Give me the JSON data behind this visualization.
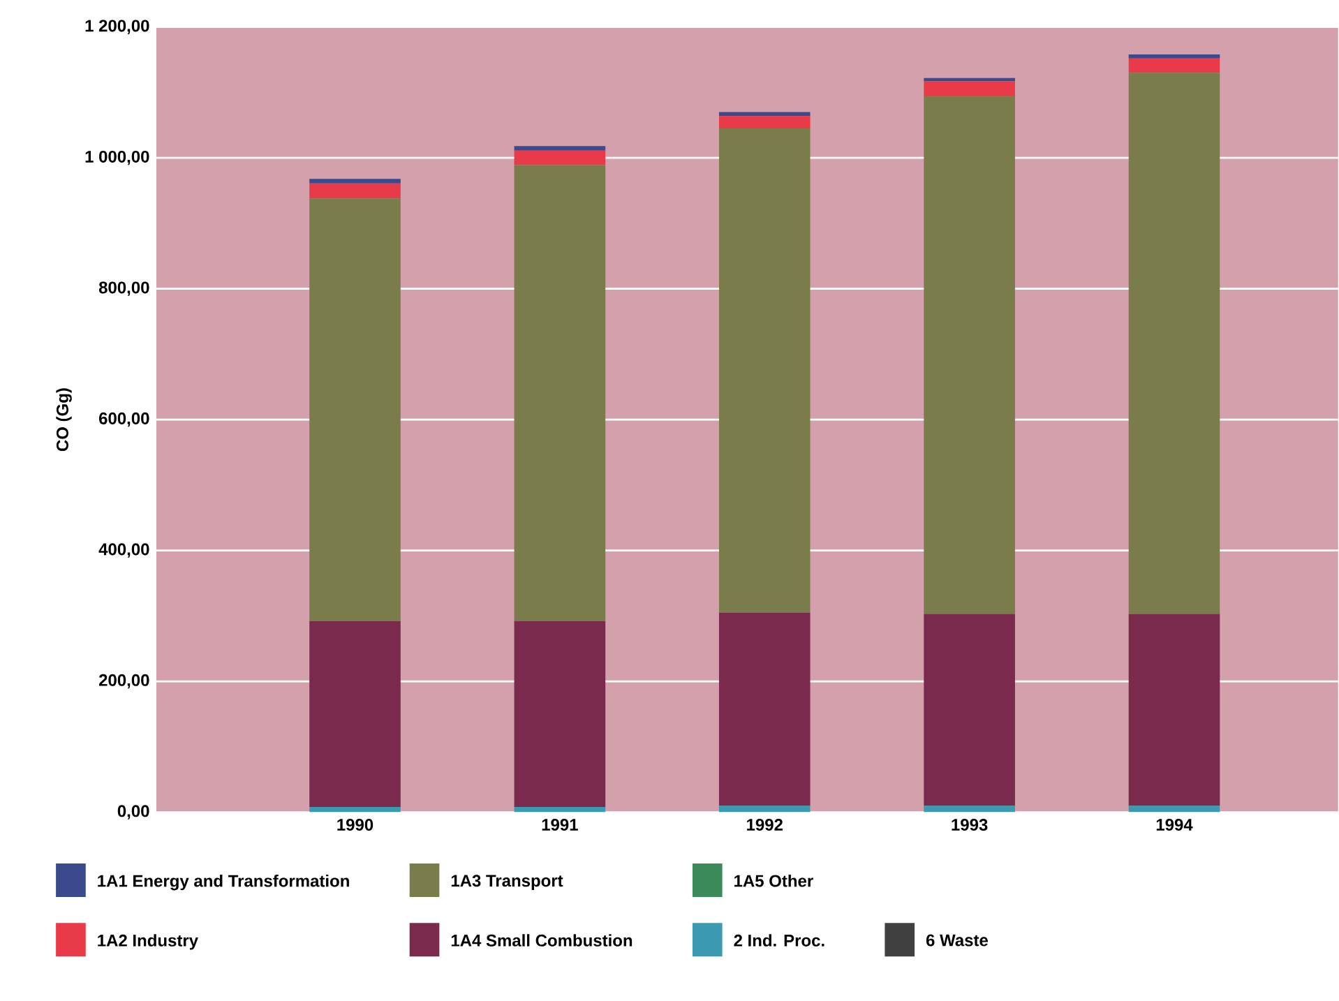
{
  "chart_data": {
    "type": "bar",
    "stacked": true,
    "ylabel": "CO (Gg)",
    "categories": [
      "1990",
      "1991",
      "1992",
      "1993",
      "1994"
    ],
    "series": [
      {
        "name": "2 Ind. Proc.",
        "color": "#3a9ab0",
        "values": [
          8,
          8,
          10,
          10,
          10
        ]
      },
      {
        "name": "1A4 Small Combustion",
        "color": "#7a2a4c",
        "values": [
          284,
          284,
          295,
          293,
          293
        ]
      },
      {
        "name": "1A3 Transport",
        "color": "#7a7c4c",
        "values": [
          646,
          697,
          740,
          792,
          827
        ]
      },
      {
        "name": "1A2 Industry",
        "color": "#e83a48",
        "values": [
          23,
          22,
          19,
          22,
          22
        ]
      },
      {
        "name": "1A1 Energy and Transformation",
        "color": "#3a4a8c",
        "values": [
          7,
          7,
          6,
          5,
          6
        ]
      },
      {
        "name": "1A5 Other",
        "color": "#3a8a5a",
        "values": [
          0,
          0,
          0,
          0,
          0
        ]
      },
      {
        "name": "6 Waste",
        "color": "#404040",
        "values": [
          0,
          0,
          0,
          0,
          0
        ]
      }
    ],
    "ylim": [
      0,
      1200
    ],
    "yticks": [
      {
        "value": 0,
        "label": "0,00"
      },
      {
        "value": 200,
        "label": "200,00"
      },
      {
        "value": 400,
        "label": "400,00"
      },
      {
        "value": 600,
        "label": "600,00"
      },
      {
        "value": 800,
        "label": "800,00"
      },
      {
        "value": 1000,
        "label": "1 000,00"
      },
      {
        "value": 1200,
        "label": "1 200,00"
      }
    ],
    "grid": "y",
    "legend": "bottom"
  }
}
